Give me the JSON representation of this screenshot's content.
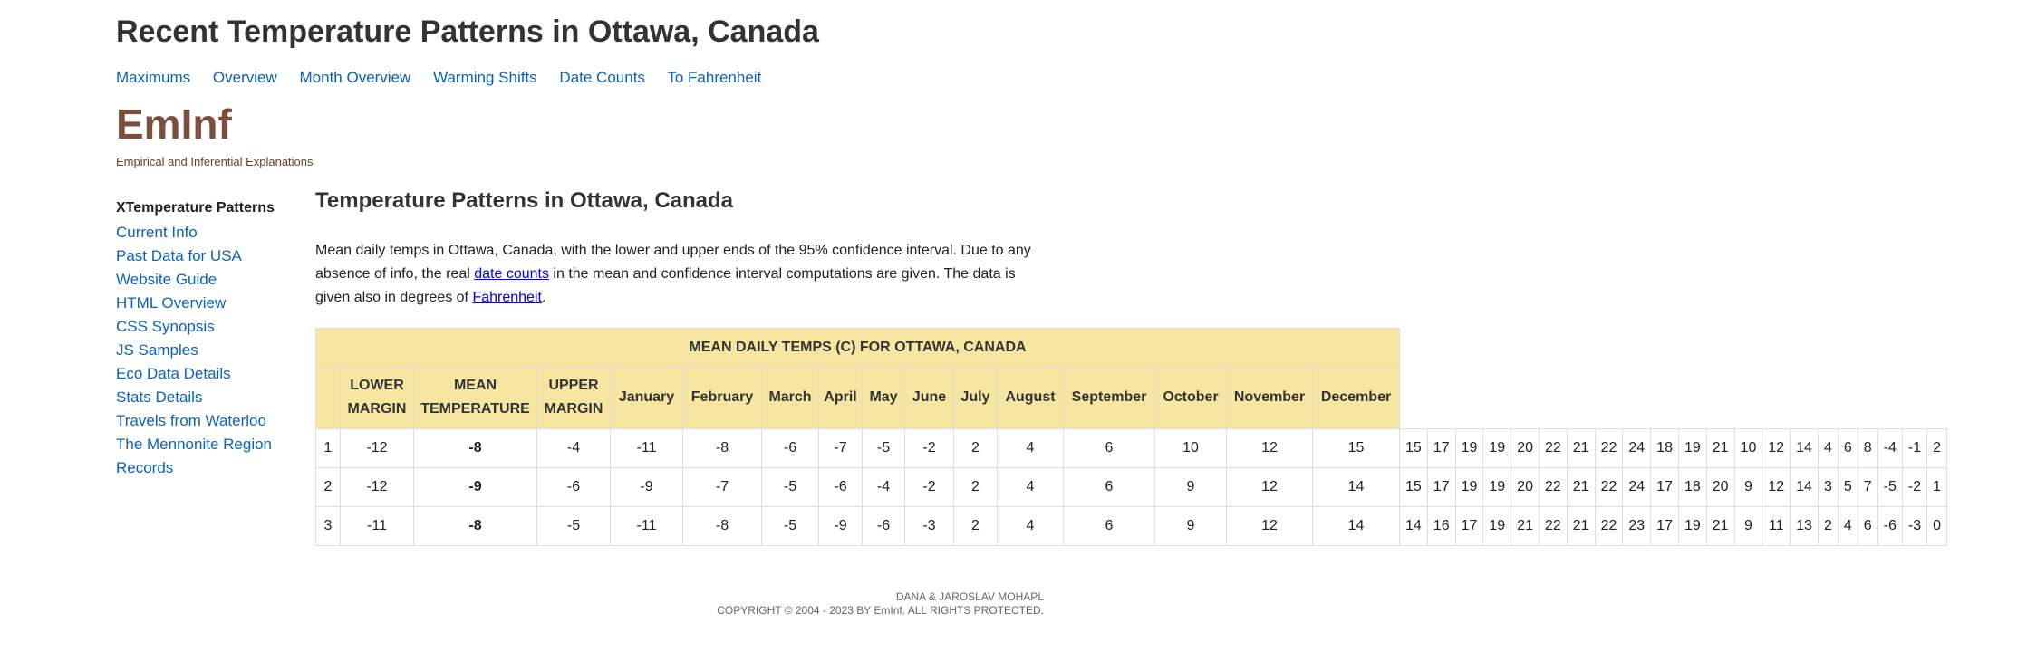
{
  "header": {
    "title": "Recent Temperature Patterns in Ottawa, Canada",
    "nav": [
      "Maximums",
      "Overview",
      "Month Overview",
      "Warming Shifts",
      "Date Counts",
      "To Fahrenheit"
    ]
  },
  "brand": {
    "logo": "EmInf",
    "tagline": "Empirical and Inferential Explanations"
  },
  "sidebar": {
    "current": "XTemperature Patterns",
    "items": [
      "Current Info",
      "Past Data for USA",
      "Website Guide",
      "HTML Overview",
      "CSS Synopsis",
      "JS Samples",
      "Eco Data Details",
      "Stats Details",
      "Travels from Waterloo",
      "The Mennonite Region",
      "Records"
    ]
  },
  "main": {
    "heading": "Temperature Patterns in Ottawa, Canada",
    "intro_before": "Mean daily temps in Ottawa, Canada, with the lower and upper ends of the 95% confidence interval. Due to any absence of info, the real ",
    "intro_link1": "date counts",
    "intro_middle": " in the mean and confidence interval computations are given. The data is given also in degrees of ",
    "intro_link2": "Fahrenheit",
    "intro_after": "."
  },
  "table": {
    "caption": "MEAN DAILY TEMPS (C) FOR OTTAWA, CANADA",
    "lower_label_1": "LOWER",
    "lower_label_2": "MARGIN",
    "mean_label_1": "MEAN",
    "mean_label_2": "TEMPERATURE",
    "upper_label_1": "UPPER",
    "upper_label_2": "MARGIN",
    "months": [
      "January",
      "February",
      "March",
      "April",
      "May",
      "June",
      "July",
      "August",
      "September",
      "October",
      "November",
      "December"
    ],
    "rows": [
      {
        "day": "1",
        "lower": "-12",
        "mean": "-8",
        "upper": "-4",
        "values": [
          "-11",
          "-8",
          "-6",
          "-7",
          "-5",
          "-2",
          "2",
          "4",
          "6",
          "10",
          "12",
          "15",
          "15",
          "17",
          "19",
          "19",
          "20",
          "22",
          "21",
          "22",
          "24",
          "18",
          "19",
          "21",
          "10",
          "12",
          "14",
          "4",
          "6",
          "8",
          "-4",
          "-1",
          "2"
        ]
      },
      {
        "day": "2",
        "lower": "-12",
        "mean": "-9",
        "upper": "-6",
        "values": [
          "-9",
          "-7",
          "-5",
          "-6",
          "-4",
          "-2",
          "2",
          "4",
          "6",
          "9",
          "12",
          "14",
          "15",
          "17",
          "19",
          "19",
          "20",
          "22",
          "21",
          "22",
          "24",
          "17",
          "18",
          "20",
          "9",
          "12",
          "14",
          "3",
          "5",
          "7",
          "-5",
          "-2",
          "1"
        ]
      },
      {
        "day": "3",
        "lower": "-11",
        "mean": "-8",
        "upper": "-5",
        "values": [
          "-11",
          "-8",
          "-5",
          "-9",
          "-6",
          "-3",
          "2",
          "4",
          "6",
          "9",
          "12",
          "14",
          "14",
          "16",
          "17",
          "19",
          "21",
          "22",
          "21",
          "22",
          "23",
          "17",
          "19",
          "21",
          "9",
          "11",
          "13",
          "2",
          "4",
          "6",
          "-6",
          "-3",
          "0"
        ]
      }
    ]
  },
  "footer": {
    "line1": "DANA & JAROSLAV MOHAPL",
    "line2": "COPYRIGHT © 2004 - 2023 BY EmInf. ALL RIGHTS PROTECTED."
  }
}
